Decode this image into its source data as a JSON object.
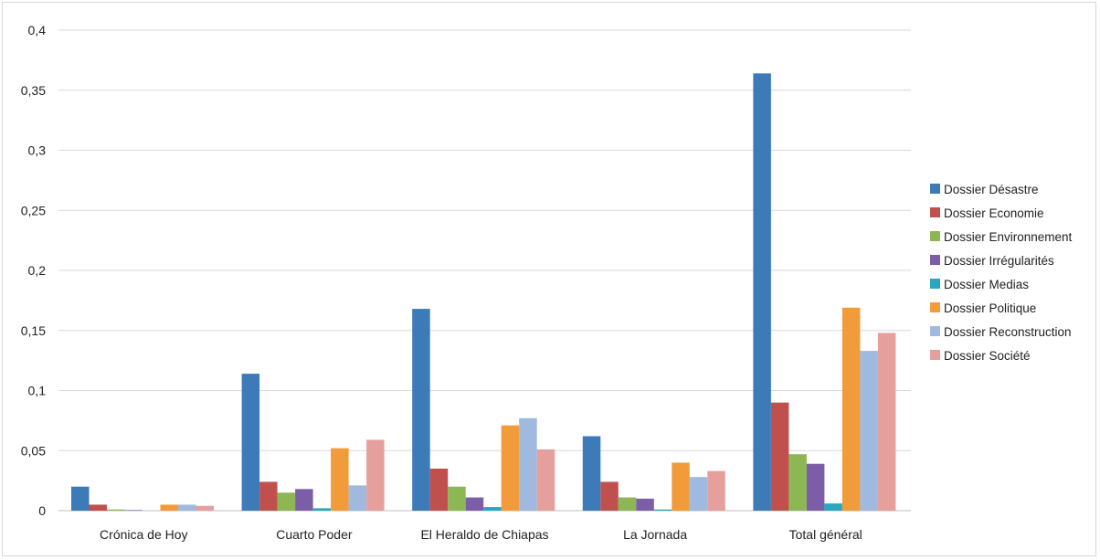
{
  "chart_data": {
    "type": "bar",
    "title": "",
    "xlabel": "",
    "ylabel": "",
    "ylim": [
      0,
      0.4
    ],
    "yticks": [
      {
        "value": 0,
        "label": "0"
      },
      {
        "value": 0.05,
        "label": "0,05"
      },
      {
        "value": 0.1,
        "label": "0,1"
      },
      {
        "value": 0.15,
        "label": "0,15"
      },
      {
        "value": 0.2,
        "label": "0,2"
      },
      {
        "value": 0.25,
        "label": "0,25"
      },
      {
        "value": 0.3,
        "label": "0,3"
      },
      {
        "value": 0.35,
        "label": "0,35"
      },
      {
        "value": 0.4,
        "label": "0,4"
      }
    ],
    "grid": true,
    "legend_position": "right",
    "categories": [
      "Crónica de Hoy",
      "Cuarto Poder",
      "El Heraldo de Chiapas",
      "La Jornada",
      "Total général"
    ],
    "series": [
      {
        "name": "Dossier Désastre",
        "color": "#3d7ab8",
        "values": [
          0.02,
          0.114,
          0.168,
          0.062,
          0.364
        ]
      },
      {
        "name": "Dossier Economie",
        "color": "#c0504d",
        "values": [
          0.005,
          0.024,
          0.035,
          0.024,
          0.09
        ]
      },
      {
        "name": "Dossier Environnement",
        "color": "#8db655",
        "values": [
          0.001,
          0.015,
          0.02,
          0.011,
          0.047
        ]
      },
      {
        "name": "Dossier Irrégularités",
        "color": "#7b5ea7",
        "values": [
          0.0005,
          0.018,
          0.011,
          0.01,
          0.039
        ]
      },
      {
        "name": "Dossier Medias",
        "color": "#2aa7c0",
        "values": [
          0.0,
          0.002,
          0.003,
          0.001,
          0.006
        ]
      },
      {
        "name": "Dossier Politique",
        "color": "#f29b3a",
        "values": [
          0.005,
          0.052,
          0.071,
          0.04,
          0.169
        ]
      },
      {
        "name": "Dossier Reconstruction",
        "color": "#9fb9df",
        "values": [
          0.005,
          0.021,
          0.077,
          0.028,
          0.133
        ]
      },
      {
        "name": "Dossier Société",
        "color": "#e5a09e",
        "values": [
          0.004,
          0.059,
          0.051,
          0.033,
          0.148
        ]
      }
    ]
  }
}
